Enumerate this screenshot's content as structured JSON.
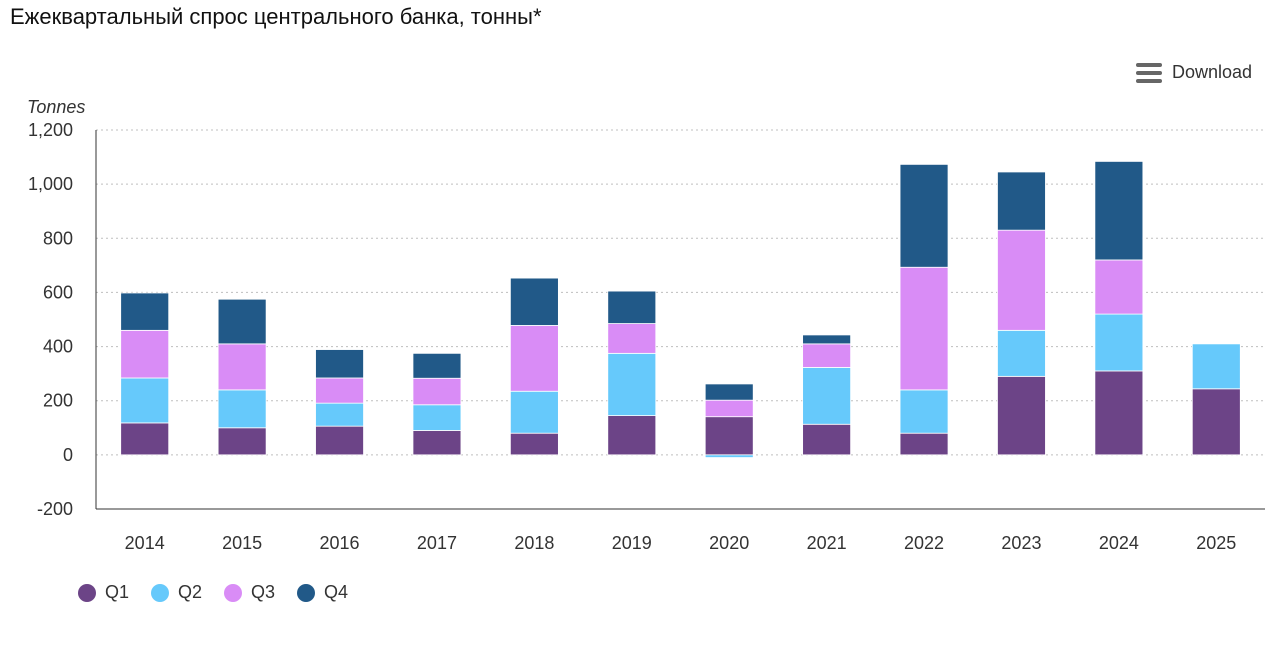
{
  "title": "Ежеквартальный спрос центрального банка, тонны*",
  "download_label": "Download",
  "menu_icon": "hamburger-menu-icon",
  "colors": {
    "Q1": "#6c4487",
    "Q2": "#66c9fb",
    "Q3": "#d98cf6",
    "Q4": "#215988",
    "grid": "#bfbfbf",
    "axis": "#333333"
  },
  "chart_data": {
    "type": "bar",
    "stacked": true,
    "ylabel": "Tonnes",
    "ylim": [
      -200,
      1200
    ],
    "yticks": [
      -200,
      0,
      200,
      400,
      600,
      800,
      1000,
      1200
    ],
    "ytick_labels": [
      "-200",
      "0",
      "200",
      "400",
      "600",
      "800",
      "1,000",
      "1,200"
    ],
    "grid": true,
    "legend_position": "bottom-left",
    "categories": [
      "2014",
      "2015",
      "2016",
      "2017",
      "2018",
      "2019",
      "2020",
      "2021",
      "2022",
      "2023",
      "2024",
      "2025"
    ],
    "series": [
      {
        "name": "Q1",
        "values": [
          118,
          100,
          106,
          90,
          80,
          145,
          141,
          113,
          80,
          290,
          310,
          244
        ]
      },
      {
        "name": "Q2",
        "values": [
          166,
          140,
          85,
          95,
          155,
          230,
          -10,
          210,
          160,
          170,
          210,
          166
        ]
      },
      {
        "name": "Q3",
        "values": [
          176,
          170,
          93,
          98,
          243,
          110,
          61,
          87,
          453,
          370,
          200,
          0
        ]
      },
      {
        "name": "Q4",
        "values": [
          138,
          165,
          105,
          92,
          175,
          120,
          60,
          33,
          380,
          215,
          364,
          0
        ]
      }
    ]
  }
}
